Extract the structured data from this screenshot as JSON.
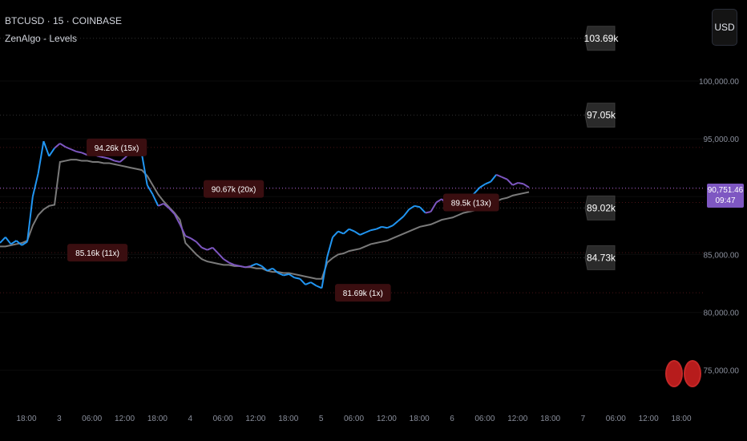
{
  "header": {
    "title": "BTCUSD · 15 · COINBASE",
    "indicator": "ZenAlgo - Levels"
  },
  "currency_button": "USD",
  "current_price": {
    "price": "90,751.46",
    "countdown": "09:47",
    "value": 90751.46
  },
  "colors": {
    "background": "#000000",
    "price_blue": "#2196f3",
    "price_purple": "#7e57c2",
    "average_line": "#7a7a7a",
    "level_tag": "#3a0e10",
    "resistance_tag": "#2a2a2a",
    "current_price_tag": "#7e57c2"
  },
  "chart_data": {
    "type": "line",
    "symbol": "BTCUSD",
    "ylim": [
      72000,
      107000
    ],
    "y_ticks": [
      {
        "value": 100000,
        "label": "100,000.00"
      },
      {
        "value": 95000,
        "label": "95,000.00"
      },
      {
        "value": 90000,
        "label": ""
      },
      {
        "value": 85000,
        "label": "85,000.00"
      },
      {
        "value": 80000,
        "label": "80,000.00"
      },
      {
        "value": 75000,
        "label": "75,000.00"
      }
    ],
    "x_ticks": [
      "18:00",
      "3",
      "06:00",
      "12:00",
      "18:00",
      "4",
      "06:00",
      "12:00",
      "18:00",
      "5",
      "06:00",
      "12:00",
      "18:00",
      "6",
      "06:00",
      "12:00",
      "18:00",
      "7",
      "06:00",
      "12:00",
      "18:00"
    ],
    "series": [
      {
        "values": [
          86000,
          86500,
          85900,
          86200,
          85800,
          86100,
          90000,
          92000,
          94800,
          93500,
          94200,
          94600,
          94300,
          94100,
          93900,
          93800,
          93600,
          93700,
          93500,
          93400,
          93300,
          93100,
          93000,
          93400,
          93900,
          94000,
          93700,
          91000,
          90200,
          89200,
          89400,
          89000,
          88500,
          87600,
          86600,
          86400,
          86100,
          85600,
          85400,
          85600,
          85100,
          84600,
          84300,
          84100,
          84000,
          83900,
          84000,
          84200,
          84000,
          83600,
          83800,
          83400,
          83200,
          83300,
          83000,
          82900,
          82400,
          82600,
          82300,
          82100,
          84800,
          86500,
          87000,
          86800,
          87200,
          87000,
          86700,
          86900,
          87100,
          87200,
          87400,
          87300,
          87500,
          87900,
          88300,
          88900,
          89200,
          89100,
          88600,
          88700,
          89500,
          89800,
          89300,
          89000,
          89600,
          90000,
          89800,
          90300,
          90800,
          91100,
          91300,
          91900,
          91700,
          91500,
          91000,
          91200,
          91100,
          90800
        ]
      },
      {
        "values": [
          85700,
          85700,
          85800,
          85900,
          86000,
          86200,
          87500,
          88400,
          88900,
          89200,
          89300,
          93000,
          93100,
          93200,
          93200,
          93100,
          93100,
          93000,
          93000,
          92900,
          92900,
          92800,
          92700,
          92600,
          92500,
          92400,
          92300,
          91800,
          91000,
          90200,
          89600,
          89100,
          88600,
          88000,
          86000,
          85500,
          85000,
          84600,
          84400,
          84300,
          84200,
          84100,
          84100,
          84000,
          84000,
          83900,
          83900,
          83800,
          83800,
          83600,
          83500,
          83500,
          83400,
          83400,
          83300,
          83200,
          83100,
          83000,
          82900,
          82900,
          84300,
          84700,
          85000,
          85100,
          85300,
          85400,
          85500,
          85700,
          85900,
          86000,
          86100,
          86200,
          86400,
          86600,
          86800,
          87000,
          87200,
          87400,
          87500,
          87600,
          87800,
          88000,
          88100,
          88200,
          88400,
          88600,
          88700,
          88800,
          89000,
          89200,
          89400,
          89600,
          89800,
          89900,
          90100,
          90200,
          90300,
          90400
        ]
      }
    ],
    "levels": [
      {
        "value": 103690,
        "label": "103.69k",
        "kind": "resistance"
      },
      {
        "value": 97050,
        "label": "97.05k",
        "kind": "resistance"
      },
      {
        "value": 94260,
        "label": "94.26k (15x)",
        "kind": "level"
      },
      {
        "value": 90670,
        "label": "90.67k (20x)",
        "kind": "level"
      },
      {
        "value": 89500,
        "label": "89.5k (13x)",
        "kind": "level"
      },
      {
        "value": 89020,
        "label": "89.02k",
        "kind": "resistance"
      },
      {
        "value": 85160,
        "label": "85.16k (11x)",
        "kind": "level"
      },
      {
        "value": 84730,
        "label": "84.73k",
        "kind": "resistance"
      },
      {
        "value": 81690,
        "label": "81.69k (1x)",
        "kind": "level"
      }
    ]
  }
}
